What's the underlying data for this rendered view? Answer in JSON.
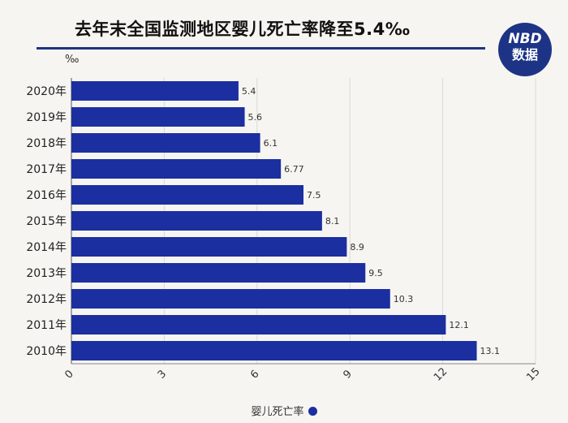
{
  "header": {
    "title": "去年末全国监测地区婴儿死亡率降至5.4‰",
    "logo_top": "NBD",
    "logo_bottom": "数据"
  },
  "colors": {
    "bar": "#1b2fa0",
    "accent": "#1d3486",
    "grid": "#d9d9d9"
  },
  "chart_data": {
    "type": "bar",
    "orientation": "horizontal",
    "unit": "‰",
    "categories": [
      "2020年",
      "2019年",
      "2018年",
      "2017年",
      "2016年",
      "2015年",
      "2014年",
      "2013年",
      "2012年",
      "2011年",
      "2010年"
    ],
    "series": [
      {
        "name": "婴儿死亡率",
        "values": [
          5.4,
          5.6,
          6.1,
          6.77,
          7.5,
          8.1,
          8.9,
          9.5,
          10.3,
          12.1,
          13.1
        ]
      }
    ],
    "xlim": [
      0,
      15
    ],
    "x_ticks": [
      0,
      3,
      6,
      9,
      12,
      15
    ],
    "grid": true,
    "legend_position": "bottom"
  }
}
